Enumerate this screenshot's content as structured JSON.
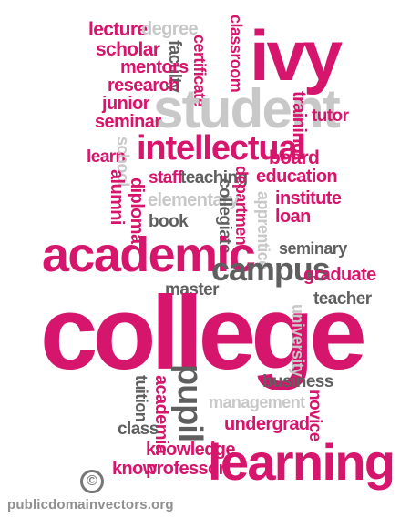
{
  "words": {
    "lecture": "lecture",
    "degree": "degree",
    "classroom": "classroom",
    "ivy": "ivy",
    "scholar": "scholar",
    "faculty": "faculty",
    "certificate": "certificate",
    "mentors": "mentors",
    "research": "research",
    "junior": "junior",
    "student": "student",
    "training": "training",
    "tutor": "tutor",
    "seminar": "seminar",
    "learn": "learn",
    "school": "school",
    "intellectual": "intellectual",
    "board": "board",
    "staff": "staff",
    "teaching": "teaching",
    "department": "department",
    "education": "education",
    "alumni": "alumni",
    "diploma": "diploma",
    "elementary": "elementary",
    "collegiate": "collegiate",
    "apprentice": "apprentice",
    "institute": "institute",
    "loan": "loan",
    "book": "book",
    "seminary": "seminary",
    "academic": "academic",
    "campus": "campus",
    "graduate": "graduate",
    "master": "master",
    "teacher": "teacher",
    "college": "college",
    "university": "university",
    "pupil": "pupil",
    "business": "business",
    "tuition": "tuition",
    "academia": "academia",
    "management": "management",
    "novice": "novice",
    "class": "class",
    "undergrad": "undergrad",
    "knowledge": "knowledge",
    "know": "know",
    "professor": "professor",
    "learning": "learning"
  },
  "logo_glyph": "©",
  "credit": "publicdomainvectors.org",
  "colors": {
    "primary": "#d6156c",
    "secondary": "#5f5f5f",
    "tertiary": "#c8c8c8"
  }
}
